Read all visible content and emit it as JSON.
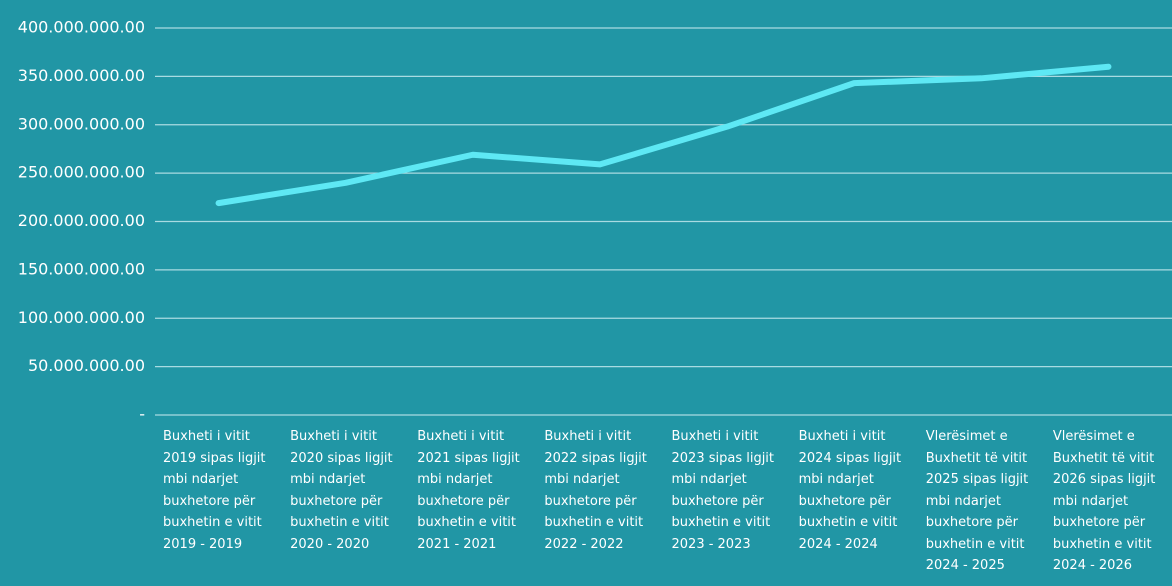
{
  "chart_data": {
    "type": "line",
    "categories": [
      "Buxheti i vitit 2019 sipas ligjit mbi ndarjet buxhetore për buxhetin e vitit 2019 - 2019",
      "Buxheti i vitit 2020 sipas ligjit mbi ndarjet buxhetore për buxhetin e vitit 2020 - 2020",
      "Buxheti i vitit 2021 sipas ligjit mbi ndarjet buxhetore për buxhetin e vitit 2021 - 2021",
      "Buxheti i vitit 2022 sipas ligjit mbi ndarjet buxhetore për buxhetin e vitit 2022 - 2022",
      "Buxheti i vitit 2023 sipas ligjit mbi ndarjet buxhetore për buxhetin e vitit 2023 - 2023",
      "Buxheti i vitit 2024 sipas ligjit mbi ndarjet buxhetore për buxhetin e vitit 2024 - 2024",
      "Vlerësimet e Buxhetit të vitit 2025 sipas ligjit mbi ndarjet buxhetore për buxhetin e vitit 2024 - 2025",
      "Vlerësimet e Buxhetit të vitit 2026 sipas ligjit mbi ndarjet buxhetore për buxhetin e vitit 2024 - 2026"
    ],
    "values": [
      219000000,
      240000000,
      269000000,
      259000000,
      298000000,
      343000000,
      348000000,
      360000000
    ],
    "color": "#5ee8f4",
    "ylim": [
      0,
      400000000
    ],
    "yticks": [
      {
        "value": 0,
        "label": "-"
      },
      {
        "value": 50000000,
        "label": "50.000.000.00"
      },
      {
        "value": 100000000,
        "label": "100.000.000.00"
      },
      {
        "value": 150000000,
        "label": "150.000.000.00"
      },
      {
        "value": 200000000,
        "label": "200.000.000.00"
      },
      {
        "value": 250000000,
        "label": "250.000.000.00"
      },
      {
        "value": 300000000,
        "label": "300.000.000.00"
      },
      {
        "value": 350000000,
        "label": "350.000.000.00"
      },
      {
        "value": 400000000,
        "label": "400.000.000.00"
      }
    ],
    "grid": true
  }
}
